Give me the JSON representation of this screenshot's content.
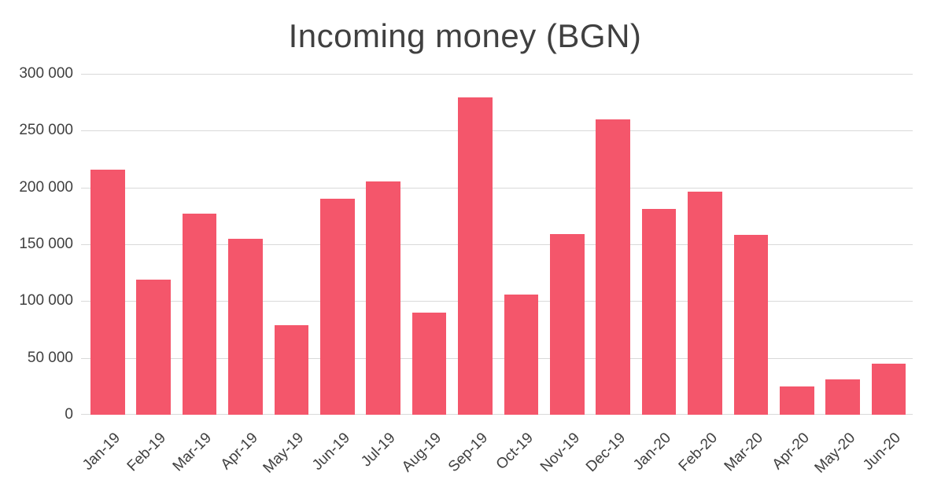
{
  "chart_data": {
    "type": "bar",
    "title": "Incoming money (BGN)",
    "categories": [
      "Jan-19",
      "Feb-19",
      "Mar-19",
      "Apr-19",
      "May-19",
      "Jun-19",
      "Jul-19",
      "Aug-19",
      "Sep-19",
      "Oct-19",
      "Nov-19",
      "Dec-19",
      "Jan-20",
      "Feb-20",
      "Mar-20",
      "Apr-20",
      "May-20",
      "Jun-20"
    ],
    "values": [
      216000,
      119000,
      177000,
      155000,
      79000,
      190000,
      205000,
      90000,
      279000,
      106000,
      159000,
      260000,
      181000,
      196000,
      158000,
      25000,
      31000,
      45000
    ],
    "xlabel": "",
    "ylabel": "",
    "ylim": [
      0,
      300000
    ],
    "y_tick_labels": [
      "300 000",
      "250 000",
      "200 000",
      "150 000",
      "100 000",
      "50 000",
      "0"
    ],
    "grid": "horizontal",
    "legend": "none",
    "bar_color": "#F4566B",
    "gridline_color": "#D9D9D9",
    "axis_text_color": "#404040",
    "title_color": "#404040",
    "background_color": "#FFFFFF"
  }
}
